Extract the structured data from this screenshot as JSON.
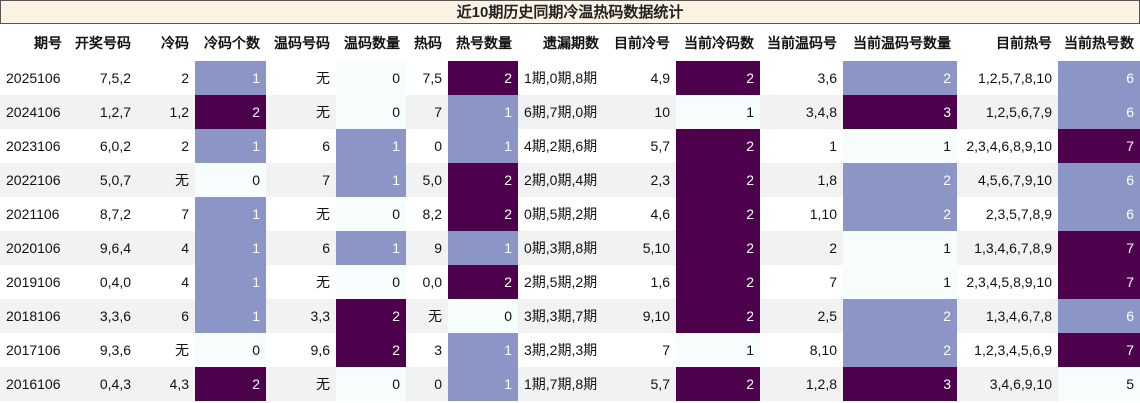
{
  "title": "近10期历史同期冷温热码数据统计",
  "table": {
    "header": [
      "期号",
      "开奖号码",
      "冷码",
      "冷码个数",
      "温码号码",
      "温码数量",
      "热码",
      "热号数量",
      "遗漏期数",
      "目前冷号",
      "当前冷码数",
      "当前温码号",
      "当前温码号数量",
      "目前热号",
      "当前热号数"
    ],
    "rows": [
      [
        "2025106",
        "7,5,2",
        "2",
        "1",
        "无",
        "0",
        "7,5",
        "2",
        "1期,0期,8期",
        "4,9",
        "2",
        "3,6",
        "2",
        "1,2,5,7,8,10",
        "6"
      ],
      [
        "2024106",
        "1,2,7",
        "1,2",
        "2",
        "无",
        "0",
        "7",
        "1",
        "6期,7期,0期",
        "10",
        "1",
        "3,4,8",
        "3",
        "1,2,5,6,7,9",
        "6"
      ],
      [
        "2023106",
        "6,0,2",
        "2",
        "1",
        "6",
        "1",
        "0",
        "1",
        "4期,2期,6期",
        "5,7",
        "2",
        "1",
        "1",
        "2,3,4,6,8,9,10",
        "7"
      ],
      [
        "2022106",
        "5,0,7",
        "无",
        "0",
        "7",
        "1",
        "5,0",
        "2",
        "2期,0期,4期",
        "2,3",
        "2",
        "1,8",
        "2",
        "4,5,6,7,9,10",
        "6"
      ],
      [
        "2021106",
        "8,7,2",
        "7",
        "1",
        "无",
        "0",
        "8,2",
        "2",
        "0期,5期,2期",
        "4,6",
        "2",
        "1,10",
        "2",
        "2,3,5,7,8,9",
        "6"
      ],
      [
        "2020106",
        "9,6,4",
        "4",
        "1",
        "6",
        "1",
        "9",
        "1",
        "0期,3期,8期",
        "5,10",
        "2",
        "2",
        "1",
        "1,3,4,6,7,8,9",
        "7"
      ],
      [
        "2019106",
        "0,4,0",
        "4",
        "1",
        "无",
        "0",
        "0,0",
        "2",
        "2期,5期,2期",
        "1,6",
        "2",
        "7",
        "1",
        "2,3,4,5,8,9,10",
        "7"
      ],
      [
        "2018106",
        "3,3,6",
        "6",
        "1",
        "3,3",
        "2",
        "无",
        "0",
        "3期,3期,7期",
        "9,10",
        "2",
        "2,5",
        "2",
        "1,3,4,6,7,8",
        "6"
      ],
      [
        "2017106",
        "9,3,6",
        "无",
        "0",
        "9,6",
        "2",
        "3",
        "1",
        "3期,2期,3期",
        "7",
        "1",
        "8,10",
        "2",
        "1,2,3,4,5,6,9",
        "7"
      ],
      [
        "2016106",
        "0,4,3",
        "4,3",
        "2",
        "无",
        "0",
        "0",
        "1",
        "1期,7期,8期",
        "5,7",
        "2",
        "1,2,8",
        "3",
        "3,4,6,9,10",
        "5"
      ]
    ],
    "heat_columns": [
      3,
      5,
      7,
      10,
      12,
      14
    ],
    "colormap": [
      "#f7fcfd",
      "#8c96c6",
      "#4d004b"
    ]
  }
}
